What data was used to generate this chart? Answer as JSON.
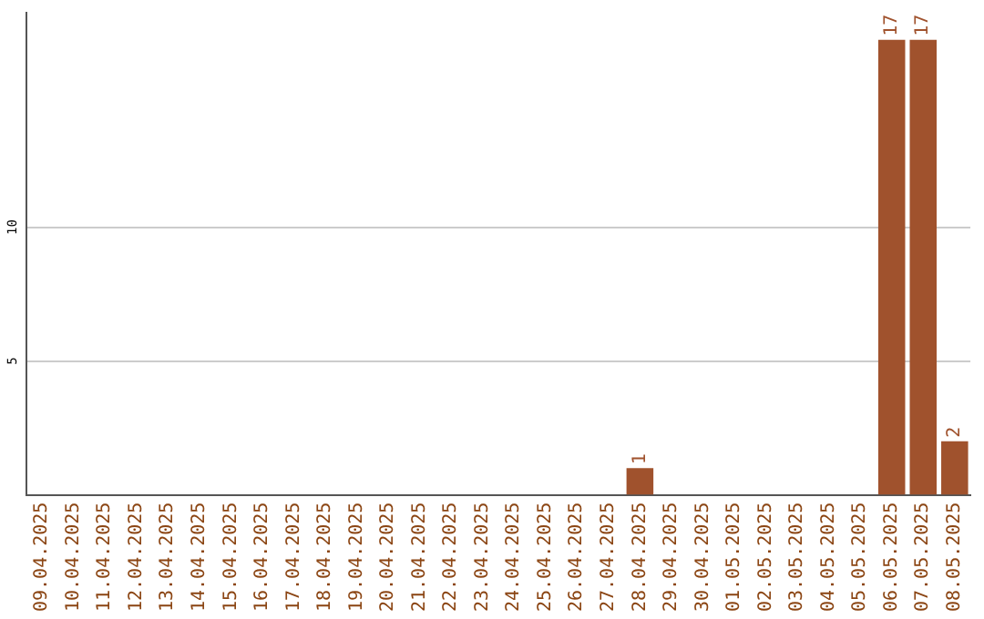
{
  "chart_data": {
    "type": "bar",
    "categories": [
      "09.04.2025",
      "10.04.2025",
      "11.04.2025",
      "12.04.2025",
      "13.04.2025",
      "14.04.2025",
      "15.04.2025",
      "16.04.2025",
      "17.04.2025",
      "18.04.2025",
      "19.04.2025",
      "20.04.2025",
      "21.04.2025",
      "22.04.2025",
      "23.04.2025",
      "24.04.2025",
      "25.04.2025",
      "26.04.2025",
      "27.04.2025",
      "28.04.2025",
      "29.04.2025",
      "30.04.2025",
      "01.05.2025",
      "02.05.2025",
      "03.05.2025",
      "04.05.2025",
      "05.05.2025",
      "06.05.2025",
      "07.05.2025",
      "08.05.2025"
    ],
    "values": [
      0,
      0,
      0,
      0,
      0,
      0,
      0,
      0,
      0,
      0,
      0,
      0,
      0,
      0,
      0,
      0,
      0,
      0,
      0,
      1,
      0,
      0,
      0,
      0,
      0,
      0,
      0,
      17,
      17,
      2
    ],
    "value_labels": [
      null,
      null,
      null,
      null,
      null,
      null,
      null,
      null,
      null,
      null,
      null,
      null,
      null,
      null,
      null,
      null,
      null,
      null,
      null,
      "1",
      null,
      null,
      null,
      null,
      null,
      null,
      null,
      "17",
      "17",
      "2"
    ],
    "color": "#a0522d",
    "ylim": [
      0,
      18
    ],
    "yticks": [
      5,
      10
    ],
    "grid": "y",
    "legend": false
  }
}
